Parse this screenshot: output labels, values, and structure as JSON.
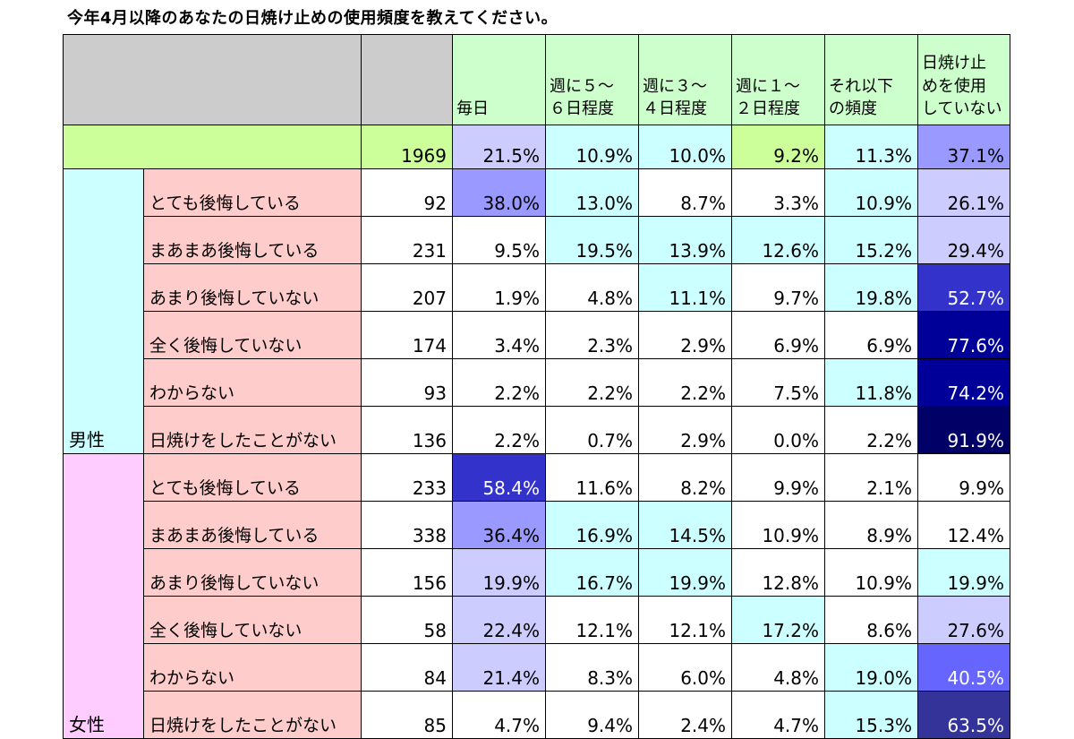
{
  "title": "今年4月以降のあなたの日焼け止めの使用頻度を教えてください。",
  "chart_data": {
    "type": "table",
    "columns": [
      "",
      "毎日",
      "週に５～\n６日程度",
      "週に３～\n４日程度",
      "週に１～\n２日程度",
      "それ以下\nの頻度",
      "日焼け止\nめを使用\nしていない"
    ],
    "total": {
      "n": "1969",
      "values": [
        "21.5%",
        "10.9%",
        "10.0%",
        "9.2%",
        "11.3%",
        "37.1%"
      ]
    },
    "groups": [
      {
        "label": "男性",
        "color": "#ccffff",
        "rows": [
          {
            "label": "とても後悔している",
            "n": "92",
            "values": [
              "38.0%",
              "13.0%",
              "8.7%",
              "3.3%",
              "10.9%",
              "26.1%"
            ]
          },
          {
            "label": "まあまあ後悔している",
            "n": "231",
            "values": [
              "9.5%",
              "19.5%",
              "13.9%",
              "12.6%",
              "15.2%",
              "29.4%"
            ]
          },
          {
            "label": "あまり後悔していない",
            "n": "207",
            "values": [
              "1.9%",
              "4.8%",
              "11.1%",
              "9.7%",
              "19.8%",
              "52.7%"
            ]
          },
          {
            "label": "全く後悔していない",
            "n": "174",
            "values": [
              "3.4%",
              "2.3%",
              "2.9%",
              "6.9%",
              "6.9%",
              "77.6%"
            ]
          },
          {
            "label": "わからない",
            "n": "93",
            "values": [
              "2.2%",
              "2.2%",
              "2.2%",
              "7.5%",
              "11.8%",
              "74.2%"
            ]
          },
          {
            "label": "日焼けをしたことがない",
            "n": "136",
            "values": [
              "2.2%",
              "0.7%",
              "2.9%",
              "0.0%",
              "2.2%",
              "91.9%"
            ]
          }
        ]
      },
      {
        "label": "女性",
        "color": "#ffccff",
        "rows": [
          {
            "label": "とても後悔している",
            "n": "233",
            "values": [
              "58.4%",
              "11.6%",
              "8.2%",
              "9.9%",
              "2.1%",
              "9.9%"
            ]
          },
          {
            "label": "まあまあ後悔している",
            "n": "338",
            "values": [
              "36.4%",
              "16.9%",
              "14.5%",
              "10.9%",
              "8.9%",
              "12.4%"
            ]
          },
          {
            "label": "あまり後悔していない",
            "n": "156",
            "values": [
              "19.9%",
              "16.7%",
              "19.9%",
              "12.8%",
              "10.9%",
              "19.9%"
            ]
          },
          {
            "label": "全く後悔していない",
            "n": "58",
            "values": [
              "22.4%",
              "12.1%",
              "12.1%",
              "17.2%",
              "8.6%",
              "27.6%"
            ]
          },
          {
            "label": "わからない",
            "n": "84",
            "values": [
              "21.4%",
              "8.3%",
              "6.0%",
              "4.8%",
              "19.0%",
              "40.5%"
            ]
          },
          {
            "label": "日焼けをしたことがない",
            "n": "85",
            "values": [
              "4.7%",
              "9.4%",
              "2.4%",
              "4.7%",
              "15.3%",
              "63.5%"
            ]
          }
        ]
      }
    ],
    "cell_fill": [
      [
        "#ccccff",
        "#ccffff",
        "#ccffff",
        "#ccff99",
        "#ccffff",
        "#9999ff"
      ],
      [
        "#9999ff",
        "#ccffff",
        "#ffffff",
        "#ffffff",
        "#ccffff",
        "#ccccff"
      ],
      [
        "#ffffff",
        "#ccffff",
        "#ccffff",
        "#ccffff",
        "#ccffff",
        "#ccccff"
      ],
      [
        "#ffffff",
        "#ffffff",
        "#ccffff",
        "#ffffff",
        "#ccffff",
        "#3333cc"
      ],
      [
        "#ffffff",
        "#ffffff",
        "#ffffff",
        "#ffffff",
        "#ffffff",
        "#000099"
      ],
      [
        "#ffffff",
        "#ffffff",
        "#ffffff",
        "#ffffff",
        "#ccffff",
        "#000099"
      ],
      [
        "#ffffff",
        "#ffffff",
        "#ffffff",
        "#ffffff",
        "#ffffff",
        "#000066"
      ],
      [
        "#3333cc",
        "#ffffff",
        "#ffffff",
        "#ffffff",
        "#ffffff",
        "#ffffff"
      ],
      [
        "#9999ff",
        "#ccffff",
        "#ccffff",
        "#ffffff",
        "#ffffff",
        "#ffffff"
      ],
      [
        "#ccccff",
        "#ccffff",
        "#ccffff",
        "#ffffff",
        "#ffffff",
        "#ccffff"
      ],
      [
        "#ccccff",
        "#ffffff",
        "#ffffff",
        "#ccffff",
        "#ffffff",
        "#ccccff"
      ],
      [
        "#ccccff",
        "#ffffff",
        "#ffffff",
        "#ffffff",
        "#ccffff",
        "#6666ff"
      ],
      [
        "#ffffff",
        "#ffffff",
        "#ffffff",
        "#ffffff",
        "#ccffff",
        "#333399"
      ]
    ],
    "colors": {
      "header_gray": "#cccccc",
      "header_green": "#ccffcc",
      "total_row_label": "#ccff99",
      "row_label_pink": "#ffcccc",
      "dark_text": "#ffffff"
    }
  }
}
